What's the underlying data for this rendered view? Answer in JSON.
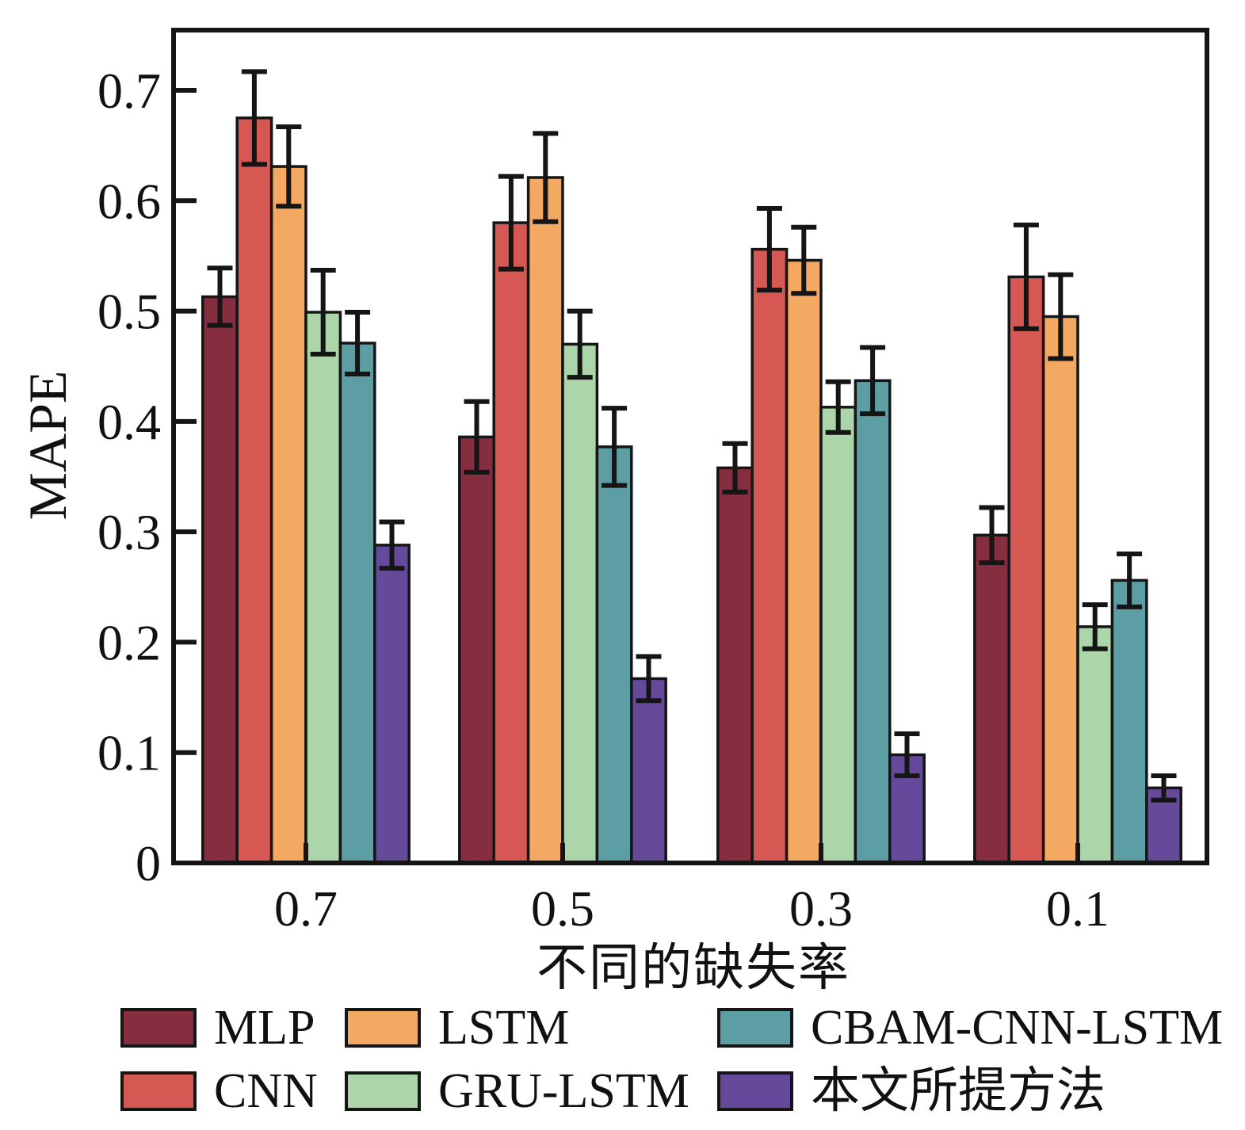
{
  "figure": {
    "kind": "grouped bar chart with error bars",
    "background": "#ffffff",
    "axis_color": "#151515"
  },
  "chart_data": {
    "type": "bar",
    "title": "",
    "xlabel": "不同的缺失率",
    "ylabel": "MAPE",
    "categories": [
      "0.7",
      "0.5",
      "0.3",
      "0.1"
    ],
    "series": [
      {
        "name": "MLP",
        "color": "#862D3F",
        "values": [
          0.513,
          0.386,
          0.358,
          0.297
        ],
        "errors": [
          0.026,
          0.032,
          0.022,
          0.025
        ]
      },
      {
        "name": "CNN",
        "color": "#D65853",
        "values": [
          0.675,
          0.58,
          0.556,
          0.531
        ],
        "errors": [
          0.042,
          0.042,
          0.037,
          0.047
        ]
      },
      {
        "name": "LSTM",
        "color": "#F4A963",
        "values": [
          0.631,
          0.621,
          0.546,
          0.495
        ],
        "errors": [
          0.036,
          0.04,
          0.03,
          0.038
        ]
      },
      {
        "name": "GRU-LSTM",
        "color": "#ACD6AA",
        "values": [
          0.499,
          0.47,
          0.413,
          0.214
        ],
        "errors": [
          0.038,
          0.03,
          0.023,
          0.02
        ]
      },
      {
        "name": "CBAM-CNN-LSTM",
        "color": "#5C9EA4",
        "values": [
          0.471,
          0.377,
          0.437,
          0.256
        ],
        "errors": [
          0.028,
          0.035,
          0.03,
          0.024
        ]
      },
      {
        "name": "本文所提方法",
        "color": "#654A9C",
        "values": [
          0.288,
          0.167,
          0.098,
          0.068
        ],
        "errors": [
          0.021,
          0.02,
          0.019,
          0.011
        ]
      }
    ],
    "ylim": [
      0,
      0.753
    ],
    "yticks": [
      0,
      0.1,
      0.2,
      0.3,
      0.4,
      0.5,
      0.6,
      0.7
    ],
    "grid": false,
    "bar_outline_color": "#151515",
    "error_bar_color": "#151515",
    "ticks_direction": "in",
    "legend_position": "below",
    "legend_rows": [
      [
        "MLP",
        "LSTM",
        "CBAM-CNN-LSTM"
      ],
      [
        "CNN",
        "GRU-LSTM",
        "本文所提方法"
      ]
    ]
  }
}
